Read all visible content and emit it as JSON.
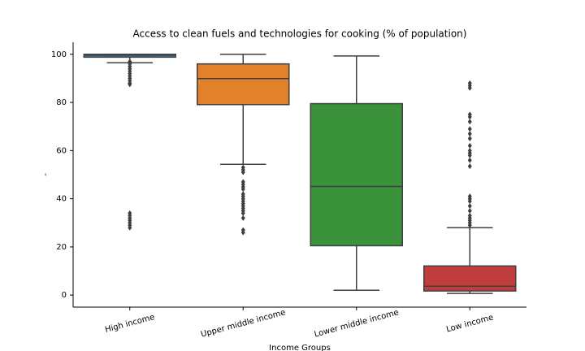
{
  "chart_data": {
    "type": "box",
    "title": "Access to clean fuels and technologies for cooking (% of population)",
    "x_label": "Income Groups",
    "y_label": "-",
    "categories": [
      "High income",
      "Upper middle income",
      "Lower middle income",
      "Low income"
    ],
    "colors": [
      "#3274a1",
      "#e1812c",
      "#3a923a",
      "#c03d3e"
    ],
    "min": [
      96.5,
      54.3,
      2,
      0.7
    ],
    "q1": [
      98.8,
      79.1,
      20.5,
      1.7
    ],
    "median": [
      99.7,
      89.9,
      45.1,
      3.7
    ],
    "q3": [
      100,
      96,
      79.5,
      12.1
    ],
    "max": [
      100,
      100,
      99.3,
      28
    ],
    "outliers": [
      [
        97,
        96,
        95,
        94,
        93,
        92,
        91,
        90,
        89,
        88,
        87.5,
        34,
        33,
        32,
        31,
        30,
        29,
        28
      ],
      [
        53,
        52,
        51,
        47,
        46,
        45,
        44,
        42,
        41,
        40,
        39,
        38,
        37,
        36,
        35,
        34,
        32,
        27,
        26
      ],
      [],
      [
        29,
        30,
        31,
        32,
        33,
        35,
        37,
        39,
        40,
        41,
        53.5,
        56,
        58,
        59,
        60,
        62,
        65,
        67,
        69,
        72,
        74,
        75,
        86,
        87,
        88
      ]
    ],
    "ylim": [
      -5,
      105
    ],
    "yticks": [
      0,
      20,
      40,
      60,
      80,
      100
    ]
  }
}
